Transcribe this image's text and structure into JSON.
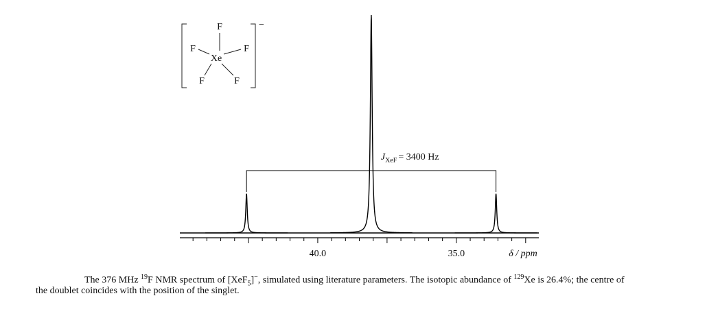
{
  "chart_data": {
    "type": "spectrum",
    "structure": {
      "center": "Xe",
      "atoms": [
        "F",
        "F",
        "F",
        "F",
        "F"
      ],
      "charge": "−"
    },
    "x": [
      42.57,
      38.07,
      33.57
    ],
    "values": [
      18,
      100,
      18
    ],
    "color": "#000000",
    "xlim": [
      45,
      32
    ],
    "ylim": [
      0,
      100
    ],
    "xticks": [
      {
        "value": 42.5,
        "label": null
      },
      {
        "value": 40,
        "label": "40.0"
      },
      {
        "value": 37.5,
        "label": null
      },
      {
        "value": 35,
        "label": "35.0"
      },
      {
        "value": 32.5,
        "label": null
      }
    ],
    "xticks_minor": [
      44.5,
      44,
      43.5,
      43,
      42,
      41.5,
      41,
      40.5,
      39.5,
      39,
      38.5,
      38,
      37,
      36.5,
      36,
      35.5,
      34.5,
      34,
      33.5,
      33
    ],
    "xlabel": "δ / ppm",
    "annotation": {
      "symbol": "J",
      "subscript": "XeF",
      "text": "= 3400 Hz"
    },
    "caption": [
      [
        {
          "t": "The 376 MHz "
        },
        {
          "t": "19",
          "s": "sup"
        },
        {
          "t": "F NMR spectrum of [XeF"
        },
        {
          "t": "5",
          "s": "sub"
        },
        {
          "t": "]"
        },
        {
          "t": "−",
          "s": "sup"
        },
        {
          "t": ", simulated using literature parameters. The isotopic abundance of "
        },
        {
          "t": "129",
          "s": "sup"
        },
        {
          "t": "Xe is 26.4%; the centre of"
        }
      ],
      [
        {
          "t": "the doublet coincides with the position of the singlet."
        }
      ]
    ]
  }
}
